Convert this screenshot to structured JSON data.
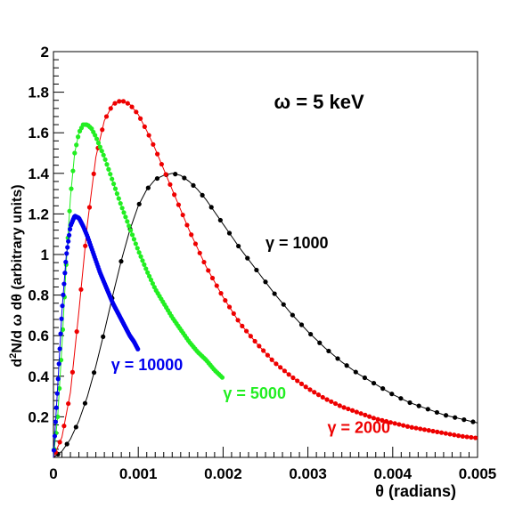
{
  "chart_data": {
    "type": "scatter",
    "xlabel": "θ   (radians)",
    "ylabel": "d²N/d ω dθ (arbitrary units)",
    "ylabel_parts": {
      "pre": "d",
      "sup": "2",
      "post": "N/d ω dθ (arbitrary units)"
    },
    "xlim": [
      0,
      0.005
    ],
    "ylim": [
      0,
      2
    ],
    "x_ticks": [
      0,
      0.001,
      0.002,
      0.003,
      0.004,
      0.005
    ],
    "x_tick_labels": [
      "0",
      "0.001",
      "0.002",
      "0.003",
      "0.004",
      "0.005"
    ],
    "y_ticks": [
      0.2,
      0.4,
      0.6,
      0.8,
      1,
      1.2,
      1.4,
      1.6,
      1.8,
      2
    ],
    "y_tick_labels": [
      "0.2",
      "0.4",
      "0.6",
      "0.8",
      "1",
      "1.2",
      "1.4",
      "1.6",
      "1.8",
      "2"
    ],
    "grid": false,
    "annotations": [
      {
        "text": "ω = 5 keV",
        "x": 0.0026,
        "y": 1.72
      },
      {
        "text": "γ = 1000",
        "x": 0.0025,
        "y": 1.03,
        "color": "#000000"
      },
      {
        "text": "γ = 10000",
        "x": 0.00068,
        "y": 0.43,
        "color": "#0000ee"
      },
      {
        "text": "γ = 5000",
        "x": 0.002,
        "y": 0.29,
        "color": "#22ee22"
      },
      {
        "text": "γ = 2000",
        "x": 0.00323,
        "y": 0.12,
        "color": "#ee0000"
      }
    ],
    "series": [
      {
        "color": "#000000",
        "markers": 47,
        "x": [
          0,
          0.0001,
          0.0002,
          0.0003,
          0.0004,
          0.0005,
          0.0006,
          0.0007,
          0.0008,
          0.0009,
          0.001,
          0.0011,
          0.0012,
          0.0013,
          0.0014,
          0.0015,
          0.0016,
          0.0017,
          0.0018,
          0.0019,
          0.002,
          0.0022,
          0.0024,
          0.0026,
          0.0028,
          0.003,
          0.0032,
          0.0034,
          0.0036,
          0.0038,
          0.004,
          0.0042,
          0.0044,
          0.0046,
          0.0048,
          0.005
        ],
        "y": [
          0,
          0.03,
          0.09,
          0.18,
          0.3,
          0.45,
          0.62,
          0.8,
          0.97,
          1.12,
          1.24,
          1.32,
          1.37,
          1.39,
          1.4,
          1.39,
          1.36,
          1.32,
          1.27,
          1.21,
          1.15,
          1.03,
          0.92,
          0.81,
          0.71,
          0.62,
          0.54,
          0.47,
          0.41,
          0.36,
          0.31,
          0.27,
          0.24,
          0.21,
          0.19,
          0.17
        ]
      },
      {
        "color": "#ee0000",
        "markers": 100,
        "x": [
          0,
          0.0001,
          0.0002,
          0.0003,
          0.0004,
          0.0005,
          0.0006,
          0.0007,
          0.0008,
          0.0009,
          0.001,
          0.0011,
          0.0012,
          0.0013,
          0.0014,
          0.0015,
          0.0016,
          0.0017,
          0.0018,
          0.002,
          0.0022,
          0.0024,
          0.0026,
          0.0028,
          0.003,
          0.0032,
          0.0034,
          0.0036,
          0.0038,
          0.004,
          0.0042,
          0.0044,
          0.0046,
          0.0048,
          0.005
        ],
        "y": [
          0,
          0.1,
          0.32,
          0.72,
          1.15,
          1.48,
          1.66,
          1.74,
          1.76,
          1.74,
          1.69,
          1.61,
          1.52,
          1.42,
          1.32,
          1.22,
          1.12,
          1.03,
          0.94,
          0.79,
          0.66,
          0.56,
          0.47,
          0.4,
          0.34,
          0.29,
          0.25,
          0.22,
          0.19,
          0.17,
          0.15,
          0.135,
          0.12,
          0.105,
          0.095
        ]
      },
      {
        "color": "#22ee22",
        "markers": 100,
        "x": [
          0,
          5e-05,
          0.0001,
          0.00015,
          0.0002,
          0.00025,
          0.0003,
          0.00035,
          0.0004,
          0.00045,
          0.0005,
          0.0006,
          0.0007,
          0.0008,
          0.0009,
          0.001,
          0.0011,
          0.0012,
          0.0013,
          0.0014,
          0.0015,
          0.0016,
          0.0017,
          0.0018,
          0.0019,
          0.002
        ],
        "y": [
          0,
          0.2,
          0.55,
          0.95,
          1.28,
          1.5,
          1.6,
          1.64,
          1.64,
          1.62,
          1.58,
          1.48,
          1.36,
          1.24,
          1.13,
          1.02,
          0.92,
          0.83,
          0.76,
          0.69,
          0.63,
          0.57,
          0.52,
          0.48,
          0.43,
          0.39
        ]
      },
      {
        "color": "#0000ee",
        "markers": 100,
        "x": [
          0,
          5e-05,
          0.0001,
          0.00015,
          0.0002,
          0.00025,
          0.0003,
          0.00035,
          0.0004,
          0.00045,
          0.0005,
          0.00055,
          0.0006,
          0.00065,
          0.0007,
          0.00075,
          0.0008,
          0.00085,
          0.0009,
          0.00095,
          0.001
        ],
        "y": [
          0,
          0.35,
          0.72,
          0.99,
          1.14,
          1.19,
          1.18,
          1.14,
          1.09,
          1.03,
          0.97,
          0.91,
          0.86,
          0.81,
          0.76,
          0.72,
          0.68,
          0.64,
          0.6,
          0.57,
          0.53
        ]
      }
    ]
  }
}
